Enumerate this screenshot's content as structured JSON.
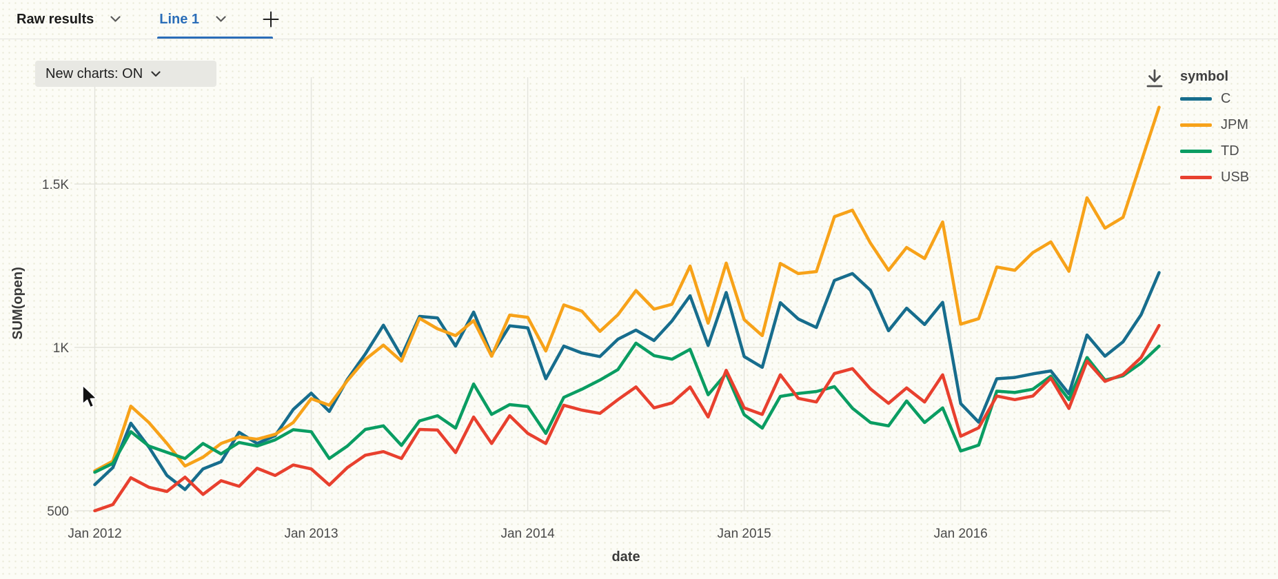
{
  "tabbar": {
    "results_tab": "Raw results",
    "chart_tab": "Line 1",
    "accent_color": "#2a6db8"
  },
  "toolbar": {
    "new_charts_label": "New charts: ON"
  },
  "legend": {
    "title": "symbol"
  },
  "chart_data": {
    "type": "line",
    "title": "",
    "xlabel": "date",
    "ylabel": "SUM(open)",
    "x_start": "Jan 2012",
    "x_end": "Dec 2016",
    "x_frequency": "monthly",
    "x_tick_labels": [
      "Jan 2012",
      "Jan 2013",
      "Jan 2014",
      "Jan 2015",
      "Jan 2016"
    ],
    "x_tick_month_index": [
      0,
      12,
      24,
      36,
      48
    ],
    "y_ticks": [
      {
        "label": "500",
        "value": 500
      },
      {
        "label": "1K",
        "value": 1000
      },
      {
        "label": "1.5K",
        "value": 1500
      }
    ],
    "ylim": [
      440,
      1790
    ],
    "grid": true,
    "legend_position": "right",
    "series": [
      {
        "name": "C",
        "color": "#176d8d",
        "values": [
          580,
          632,
          768,
          695,
          608,
          565,
          628,
          650,
          740,
          706,
          730,
          810,
          860,
          804,
          902,
          980,
          1068,
          973,
          1095,
          1090,
          1004,
          1108,
          977,
          1066,
          1060,
          904,
          1004,
          983,
          972,
          1025,
          1053,
          1021,
          1081,
          1158,
          1006,
          1168,
          972,
          939,
          1137,
          1087,
          1061,
          1205,
          1226,
          1175,
          1051,
          1120,
          1070,
          1138,
          828,
          771,
          904,
          908,
          919,
          928,
          858,
          1038,
          973,
          1017,
          1100,
          1229
        ]
      },
      {
        "name": "JPM",
        "color": "#f7a219",
        "values": [
          622,
          652,
          820,
          770,
          706,
          637,
          664,
          706,
          726,
          719,
          734,
          770,
          843,
          823,
          898,
          963,
          1007,
          958,
          1089,
          1057,
          1036,
          1082,
          973,
          1099,
          1092,
          989,
          1130,
          1111,
          1049,
          1100,
          1174,
          1117,
          1132,
          1249,
          1074,
          1258,
          1085,
          1036,
          1257,
          1226,
          1232,
          1400,
          1420,
          1319,
          1236,
          1306,
          1272,
          1384,
          1071,
          1088,
          1246,
          1236,
          1290,
          1323,
          1233,
          1458,
          1365,
          1398,
          1567,
          1735
        ]
      },
      {
        "name": "TD",
        "color": "#0a9d62",
        "values": [
          618,
          645,
          742,
          698,
          679,
          660,
          706,
          674,
          709,
          698,
          717,
          748,
          742,
          660,
          698,
          749,
          760,
          700,
          775,
          791,
          753,
          888,
          795,
          825,
          819,
          737,
          847,
          872,
          900,
          932,
          1013,
          975,
          964,
          994,
          855,
          920,
          794,
          753,
          850,
          859,
          865,
          880,
          814,
          770,
          760,
          836,
          770,
          815,
          683,
          701,
          866,
          862,
          872,
          912,
          840,
          969,
          900,
          913,
          952,
          1004
        ]
      },
      {
        "name": "USB",
        "color": "#e8402e",
        "values": [
          500,
          519,
          601,
          572,
          559,
          603,
          550,
          592,
          575,
          630,
          608,
          640,
          628,
          579,
          632,
          670,
          681,
          660,
          749,
          747,
          678,
          787,
          706,
          791,
          737,
          706,
          823,
          808,
          798,
          840,
          879,
          815,
          830,
          879,
          787,
          930,
          815,
          795,
          916,
          844,
          833,
          920,
          935,
          873,
          829,
          876,
          833,
          916,
          728,
          754,
          851,
          840,
          851,
          906,
          813,
          958,
          896,
          917,
          969,
          1067
        ]
      }
    ]
  }
}
